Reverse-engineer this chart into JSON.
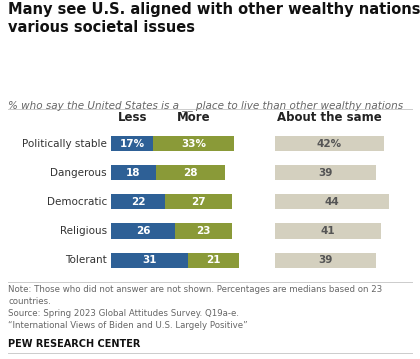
{
  "title": "Many see U.S. aligned with other wealthy nations on\nvarious societal issues",
  "subtitle": "% who say the United States is a __ place to live than other wealthy nations",
  "categories": [
    "Politically stable",
    "Dangerous",
    "Democratic",
    "Religious",
    "Tolerant"
  ],
  "less_values": [
    17,
    18,
    22,
    26,
    31
  ],
  "more_values": [
    33,
    28,
    27,
    23,
    21
  ],
  "same_values": [
    42,
    39,
    44,
    41,
    39
  ],
  "less_color": "#2E6096",
  "more_color": "#8A9A38",
  "same_color": "#D4D0BF",
  "less_label": "Less",
  "more_label": "More",
  "same_label": "About the same",
  "note_text": "Note: Those who did not answer are not shown. Percentages are medians based on 23\ncountries.\nSource: Spring 2023 Global Attitudes Survey. Q19a-e.\n“International Views of Biden and U.S. Largely Positive”",
  "source_label": "PEW RESEARCH CENTER",
  "bar_height": 0.52,
  "text_color_on_bar": "#FFFFFF",
  "text_color_same": "#555555",
  "background_color": "#FFFFFF",
  "title_fontsize": 10.5,
  "subtitle_fontsize": 7.5,
  "label_fontsize": 8.0,
  "header_fontsize": 8.5,
  "note_fontsize": 6.2,
  "source_fontsize": 7.0
}
